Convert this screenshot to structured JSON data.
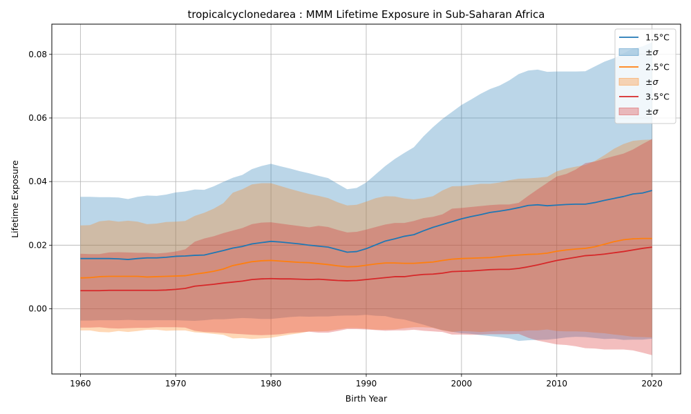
{
  "chart_data": {
    "type": "line",
    "title": "tropicalcyclonedarea : MMM Lifetime Exposure in Sub-Saharan Africa",
    "xlabel": "Birth Year",
    "ylabel": "Lifetime Exposure",
    "xlim": [
      1957,
      2023
    ],
    "ylim": [
      -0.0205,
      0.0895
    ],
    "xticks": [
      1960,
      1970,
      1980,
      1990,
      2000,
      2010,
      2020
    ],
    "yticks": [
      0.0,
      0.02,
      0.04,
      0.06,
      0.08
    ],
    "ytick_labels": [
      "0.00",
      "0.02",
      "0.04",
      "0.06",
      "0.08"
    ],
    "grid": true,
    "legend_position": "top-right",
    "x": [
      1960,
      1961,
      1962,
      1963,
      1964,
      1965,
      1966,
      1967,
      1968,
      1969,
      1970,
      1971,
      1972,
      1973,
      1974,
      1975,
      1976,
      1977,
      1978,
      1979,
      1980,
      1981,
      1982,
      1983,
      1984,
      1985,
      1986,
      1987,
      1988,
      1989,
      1990,
      1991,
      1992,
      1993,
      1994,
      1995,
      1996,
      1997,
      1998,
      1999,
      2000,
      2001,
      2002,
      2003,
      2004,
      2005,
      2006,
      2007,
      2008,
      2009,
      2010,
      2011,
      2012,
      2013,
      2014,
      2015,
      2016,
      2017,
      2018,
      2019,
      2020
    ],
    "series": [
      {
        "name": "1.5°C",
        "band_label": "±σ",
        "color": "#1f77b4",
        "band_color": "#1f77b4",
        "band_opacity": 0.3,
        "mean": [
          0.0158,
          0.0158,
          0.0158,
          0.0158,
          0.0157,
          0.0155,
          0.0158,
          0.016,
          0.016,
          0.0162,
          0.0165,
          0.0166,
          0.0168,
          0.0169,
          0.0176,
          0.0183,
          0.0191,
          0.0196,
          0.0204,
          0.0208,
          0.0212,
          0.021,
          0.0207,
          0.0204,
          0.02,
          0.0197,
          0.0194,
          0.0186,
          0.0178,
          0.018,
          0.0189,
          0.0201,
          0.0213,
          0.022,
          0.0228,
          0.0233,
          0.0245,
          0.0256,
          0.0265,
          0.0274,
          0.0283,
          0.029,
          0.0296,
          0.0303,
          0.0307,
          0.0312,
          0.0318,
          0.0325,
          0.0327,
          0.0324,
          0.0326,
          0.0328,
          0.0329,
          0.0329,
          0.0334,
          0.0341,
          0.0347,
          0.0353,
          0.0361,
          0.0364,
          0.0372
        ],
        "upper": [
          0.0352,
          0.0352,
          0.0351,
          0.0351,
          0.035,
          0.0345,
          0.0352,
          0.0356,
          0.0355,
          0.0359,
          0.0366,
          0.0369,
          0.0375,
          0.0374,
          0.0385,
          0.0399,
          0.0412,
          0.0421,
          0.0439,
          0.0449,
          0.0456,
          0.0448,
          0.0441,
          0.0433,
          0.0426,
          0.0418,
          0.0411,
          0.0393,
          0.0376,
          0.038,
          0.0397,
          0.0423,
          0.0449,
          0.0471,
          0.049,
          0.0508,
          0.0542,
          0.0571,
          0.0597,
          0.0619,
          0.0641,
          0.0658,
          0.0676,
          0.0691,
          0.0702,
          0.0718,
          0.0738,
          0.0749,
          0.0752,
          0.0745,
          0.0746,
          0.0746,
          0.0746,
          0.0747,
          0.0762,
          0.0777,
          0.0788,
          0.0803,
          0.0819,
          0.0825,
          0.0838
        ],
        "lower": [
          -0.0037,
          -0.0037,
          -0.0036,
          -0.0036,
          -0.0036,
          -0.0035,
          -0.0036,
          -0.0036,
          -0.0036,
          -0.0036,
          -0.0036,
          -0.0037,
          -0.0038,
          -0.0036,
          -0.0033,
          -0.0033,
          -0.0031,
          -0.0029,
          -0.003,
          -0.0032,
          -0.0032,
          -0.0029,
          -0.0026,
          -0.0024,
          -0.0025,
          -0.0024,
          -0.0024,
          -0.0022,
          -0.0021,
          -0.0021,
          -0.0019,
          -0.0022,
          -0.0023,
          -0.003,
          -0.0034,
          -0.0042,
          -0.005,
          -0.0059,
          -0.0067,
          -0.0072,
          -0.0077,
          -0.0079,
          -0.0083,
          -0.0086,
          -0.0089,
          -0.0093,
          -0.0101,
          -0.0099,
          -0.0098,
          -0.0097,
          -0.0094,
          -0.009,
          -0.0088,
          -0.0089,
          -0.0092,
          -0.0095,
          -0.0094,
          -0.0098,
          -0.0097,
          -0.0097,
          -0.0094
        ]
      },
      {
        "name": "2.5°C",
        "band_label": "±σ",
        "color": "#ff7f0e",
        "band_color": "#ff7f0e",
        "band_opacity": 0.3,
        "mean": [
          0.0097,
          0.0098,
          0.0101,
          0.0102,
          0.0102,
          0.0102,
          0.0102,
          0.01,
          0.0101,
          0.0102,
          0.0103,
          0.0104,
          0.0109,
          0.0113,
          0.0118,
          0.0125,
          0.0136,
          0.0142,
          0.0148,
          0.0151,
          0.0152,
          0.015,
          0.0148,
          0.0146,
          0.0145,
          0.0142,
          0.0139,
          0.0135,
          0.0132,
          0.0133,
          0.0137,
          0.0141,
          0.0144,
          0.0144,
          0.0143,
          0.0143,
          0.0145,
          0.0147,
          0.0152,
          0.0156,
          0.0158,
          0.0159,
          0.016,
          0.0161,
          0.0164,
          0.0167,
          0.0169,
          0.0171,
          0.0172,
          0.0175,
          0.0181,
          0.0185,
          0.0188,
          0.019,
          0.0195,
          0.0203,
          0.0211,
          0.0217,
          0.022,
          0.0221,
          0.0221
        ],
        "upper": [
          0.0262,
          0.0263,
          0.0275,
          0.0278,
          0.0274,
          0.0277,
          0.0274,
          0.0266,
          0.0268,
          0.0273,
          0.0274,
          0.0276,
          0.0292,
          0.0302,
          0.0315,
          0.0332,
          0.0365,
          0.0376,
          0.0391,
          0.0395,
          0.0395,
          0.0386,
          0.0377,
          0.0369,
          0.0361,
          0.0355,
          0.0348,
          0.0335,
          0.0325,
          0.0327,
          0.0337,
          0.0348,
          0.0354,
          0.0353,
          0.0347,
          0.0344,
          0.0348,
          0.0354,
          0.0372,
          0.0385,
          0.0386,
          0.0389,
          0.0393,
          0.0393,
          0.0397,
          0.0404,
          0.0409,
          0.041,
          0.0412,
          0.0415,
          0.0432,
          0.0441,
          0.0447,
          0.0452,
          0.0465,
          0.0483,
          0.0503,
          0.0518,
          0.0528,
          0.0531,
          0.0532
        ],
        "lower": [
          -0.0068,
          -0.0068,
          -0.0073,
          -0.0074,
          -0.007,
          -0.0073,
          -0.007,
          -0.0066,
          -0.0066,
          -0.0069,
          -0.0068,
          -0.0068,
          -0.0074,
          -0.0076,
          -0.0079,
          -0.0082,
          -0.0093,
          -0.0092,
          -0.0095,
          -0.0093,
          -0.0091,
          -0.0086,
          -0.0081,
          -0.0077,
          -0.0071,
          -0.0071,
          -0.007,
          -0.0065,
          -0.0061,
          -0.0061,
          -0.0063,
          -0.0066,
          -0.0066,
          -0.0065,
          -0.0061,
          -0.0058,
          -0.0058,
          -0.006,
          -0.0068,
          -0.0073,
          -0.007,
          -0.0071,
          -0.0073,
          -0.0071,
          -0.0069,
          -0.007,
          -0.0071,
          -0.0068,
          -0.0068,
          -0.0065,
          -0.007,
          -0.0071,
          -0.0071,
          -0.0072,
          -0.0075,
          -0.0077,
          -0.0081,
          -0.0084,
          -0.0088,
          -0.0089,
          -0.009
        ]
      },
      {
        "name": "3.5°C",
        "band_label": "±σ",
        "color": "#d62728",
        "band_color": "#d62728",
        "band_opacity": 0.3,
        "mean": [
          0.0057,
          0.0057,
          0.0057,
          0.0058,
          0.0058,
          0.0058,
          0.0058,
          0.0058,
          0.0058,
          0.0059,
          0.0061,
          0.0064,
          0.0071,
          0.0074,
          0.0077,
          0.0081,
          0.0084,
          0.0087,
          0.0092,
          0.0094,
          0.0095,
          0.0094,
          0.0094,
          0.0093,
          0.0092,
          0.0093,
          0.0091,
          0.0089,
          0.0088,
          0.0089,
          0.0092,
          0.0095,
          0.0098,
          0.0101,
          0.0101,
          0.0105,
          0.0108,
          0.0109,
          0.0112,
          0.0117,
          0.0118,
          0.0119,
          0.0121,
          0.0123,
          0.0124,
          0.0124,
          0.0127,
          0.0132,
          0.0138,
          0.0145,
          0.0152,
          0.0157,
          0.0162,
          0.0167,
          0.0169,
          0.0172,
          0.0176,
          0.018,
          0.0185,
          0.019,
          0.0194
        ],
        "upper": [
          0.0173,
          0.0172,
          0.0172,
          0.0177,
          0.0178,
          0.0177,
          0.0176,
          0.0176,
          0.0174,
          0.0176,
          0.018,
          0.0187,
          0.0211,
          0.0221,
          0.0228,
          0.0238,
          0.0246,
          0.0254,
          0.0266,
          0.0271,
          0.0272,
          0.0268,
          0.0264,
          0.026,
          0.0256,
          0.0261,
          0.0257,
          0.0248,
          0.024,
          0.0242,
          0.0249,
          0.0257,
          0.0265,
          0.027,
          0.027,
          0.0276,
          0.0285,
          0.0289,
          0.0297,
          0.0315,
          0.0317,
          0.032,
          0.0323,
          0.0326,
          0.0328,
          0.0328,
          0.0333,
          0.0355,
          0.0376,
          0.0396,
          0.0416,
          0.0424,
          0.0438,
          0.0458,
          0.0463,
          0.0472,
          0.048,
          0.0488,
          0.0501,
          0.0518,
          0.0534
        ],
        "lower": [
          -0.0059,
          -0.0059,
          -0.0058,
          -0.0061,
          -0.0062,
          -0.0061,
          -0.006,
          -0.006,
          -0.0058,
          -0.0058,
          -0.0058,
          -0.0059,
          -0.0069,
          -0.0073,
          -0.0074,
          -0.0076,
          -0.0078,
          -0.008,
          -0.0082,
          -0.0083,
          -0.0082,
          -0.008,
          -0.0076,
          -0.0074,
          -0.0072,
          -0.0075,
          -0.0075,
          -0.007,
          -0.0064,
          -0.0064,
          -0.0065,
          -0.0067,
          -0.0069,
          -0.0068,
          -0.0068,
          -0.0066,
          -0.0069,
          -0.0071,
          -0.0073,
          -0.0081,
          -0.0081,
          -0.0082,
          -0.0081,
          -0.008,
          -0.008,
          -0.008,
          -0.0079,
          -0.0091,
          -0.01,
          -0.0106,
          -0.0112,
          -0.0114,
          -0.0118,
          -0.0124,
          -0.0125,
          -0.0128,
          -0.0128,
          -0.0128,
          -0.0131,
          -0.0138,
          -0.0146
        ]
      }
    ]
  }
}
